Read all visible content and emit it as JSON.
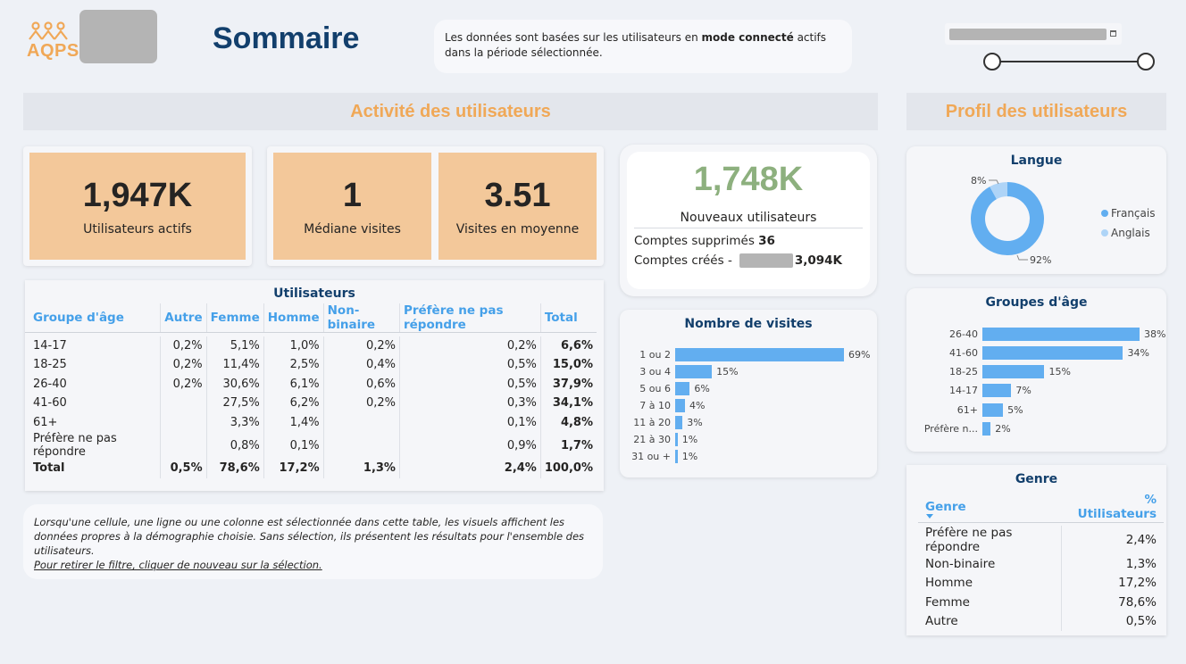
{
  "header": {
    "logo_text": "AQPS",
    "title": "Sommaire",
    "info_pre": "Les données sont basées sur les utilisateurs en ",
    "info_bold": "mode connecté",
    "info_post": " actifs dans la période sélectionnée."
  },
  "sections": {
    "activity_title": "Activité des utilisateurs",
    "profile_title": "Profil des utilisateurs"
  },
  "kpis": {
    "active_value": "1,947K",
    "active_label": "Utilisateurs actifs",
    "median_value": "1",
    "median_label": "Médiane visites",
    "avg_value": "3.51",
    "avg_label": "Visites en moyenne"
  },
  "new_users": {
    "value": "1,748K",
    "label": "Nouveaux utilisateurs",
    "deleted_label": "Comptes supprimés",
    "deleted_value": "36",
    "created_label": "Comptes créés -",
    "created_value": "3,094K"
  },
  "users_table": {
    "title": "Utilisateurs",
    "columns": [
      "Groupe d'âge",
      "Autre",
      "Femme",
      "Homme",
      "Non-binaire",
      "Préfère ne pas répondre",
      "Total"
    ],
    "rows": [
      [
        "14-17",
        "0,2%",
        "5,1%",
        "1,0%",
        "0,2%",
        "0,2%",
        "6,6%"
      ],
      [
        "18-25",
        "0,2%",
        "11,4%",
        "2,5%",
        "0,4%",
        "0,5%",
        "15,0%"
      ],
      [
        "26-40",
        "0,2%",
        "30,6%",
        "6,1%",
        "0,6%",
        "0,5%",
        "37,9%"
      ],
      [
        "41-60",
        "",
        "27,5%",
        "6,2%",
        "0,2%",
        "0,3%",
        "34,1%"
      ],
      [
        "61+",
        "",
        "3,3%",
        "1,4%",
        "",
        "0,1%",
        "4,8%"
      ],
      [
        "Préfère ne pas répondre",
        "",
        "0,8%",
        "0,1%",
        "",
        "0,9%",
        "1,7%"
      ]
    ],
    "total": [
      "Total",
      "0,5%",
      "78,6%",
      "17,2%",
      "1,3%",
      "2,4%",
      "100,0%"
    ]
  },
  "note": {
    "line1": "Lorsqu'une cellule, une ligne ou une colonne est sélectionnée dans cette table, les visuels affichent les données propres à la démographie choisie. Sans sélection, ils présentent les résultats pour l'ensemble des utilisateurs.",
    "link": "Pour retirer le filtre, cliquer de nouveau sur la sélection."
  },
  "visits_chart": {
    "title": "Nombre de visites",
    "bars": [
      {
        "label": "1 ou 2",
        "value": 69,
        "text": "69%"
      },
      {
        "label": "3 ou 4",
        "value": 15,
        "text": "15%"
      },
      {
        "label": "5 ou 6",
        "value": 6,
        "text": "6%"
      },
      {
        "label": "7 à 10",
        "value": 4,
        "text": "4%"
      },
      {
        "label": "11 à 20",
        "value": 3,
        "text": "3%"
      },
      {
        "label": "21 à 30",
        "value": 1,
        "text": "1%"
      },
      {
        "label": "31 ou +",
        "value": 1,
        "text": "1%"
      }
    ]
  },
  "language_chart": {
    "title": "Langue",
    "slices": [
      {
        "name": "Français",
        "value": 92,
        "text": "92%",
        "color": "#62aef0"
      },
      {
        "name": "Anglais",
        "value": 8,
        "text": "8%",
        "color": "#aed4f7"
      }
    ]
  },
  "age_chart": {
    "title": "Groupes d'âge",
    "bars": [
      {
        "label": "26-40",
        "value": 38,
        "text": "38%"
      },
      {
        "label": "41-60",
        "value": 34,
        "text": "34%"
      },
      {
        "label": "18-25",
        "value": 15,
        "text": "15%"
      },
      {
        "label": "14-17",
        "value": 7,
        "text": "7%"
      },
      {
        "label": "61+",
        "value": 5,
        "text": "5%"
      },
      {
        "label": "Préfère n...",
        "value": 2,
        "text": "2%"
      }
    ]
  },
  "gender_table": {
    "title": "Genre",
    "col1": "Genre",
    "col2": "% Utilisateurs",
    "rows": [
      [
        "Préfère ne pas répondre",
        "2,4%"
      ],
      [
        "Non-binaire",
        "1,3%"
      ],
      [
        "Homme",
        "17,2%"
      ],
      [
        "Femme",
        "78,6%"
      ],
      [
        "Autre",
        "0,5%"
      ]
    ]
  },
  "chart_data": [
    {
      "type": "bar",
      "title": "Nombre de visites",
      "categories": [
        "1 ou 2",
        "3 ou 4",
        "5 ou 6",
        "7 à 10",
        "11 à 20",
        "21 à 30",
        "31 ou +"
      ],
      "values": [
        69,
        15,
        6,
        4,
        3,
        1,
        1
      ]
    },
    {
      "type": "pie",
      "title": "Langue",
      "categories": [
        "Français",
        "Anglais"
      ],
      "values": [
        92,
        8
      ]
    },
    {
      "type": "bar",
      "title": "Groupes d'âge",
      "categories": [
        "26-40",
        "41-60",
        "18-25",
        "14-17",
        "61+",
        "Préfère n..."
      ],
      "values": [
        38,
        34,
        15,
        7,
        5,
        2
      ]
    }
  ],
  "colors": {
    "accent": "#f0a857",
    "title": "#123f6c",
    "bar": "#62aef0",
    "kpi_bg": "#f3c89a",
    "green": "#8db07e"
  }
}
